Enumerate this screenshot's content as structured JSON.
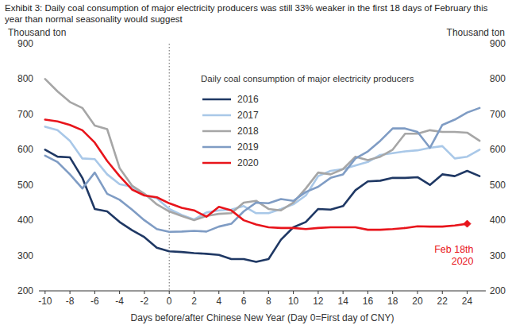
{
  "chart_data": {
    "type": "line",
    "title": "Exhibit 3: Daily coal consumption of major electricity producers was still 33% weaker in the first 18 days of February this year than normal seasonality would suggest",
    "x_label": "Days before/after Chinese New Year (Day 0=First day of CNY)",
    "y_label": "Thousand ton",
    "y2_label": "Thousand ton",
    "legend_title": "Daily coal consumption of major electricity producers",
    "legend": "upper right",
    "grid": false,
    "x": [
      -10,
      -9,
      -8,
      -7,
      -6,
      -5,
      -4,
      -3,
      -2,
      -1,
      0,
      1,
      2,
      3,
      4,
      5,
      6,
      7,
      8,
      9,
      10,
      11,
      12,
      13,
      14,
      15,
      16,
      17,
      18,
      19,
      20,
      21,
      22,
      23,
      24,
      25
    ],
    "xlim": [
      -10.5,
      25.5
    ],
    "xticks": [
      -10,
      -8,
      -6,
      -4,
      -2,
      0,
      2,
      4,
      6,
      8,
      10,
      12,
      14,
      16,
      18,
      20,
      22,
      24
    ],
    "ylim": [
      200,
      900
    ],
    "yticks": [
      200,
      300,
      400,
      500,
      600,
      700,
      800,
      900
    ],
    "y2lim": [
      200,
      900
    ],
    "y2ticks": [
      200,
      300,
      400,
      500,
      600,
      700,
      800,
      900
    ],
    "vline": 0,
    "series": [
      {
        "name": "2016",
        "color": "#1f3864",
        "values": [
          600,
          580,
          578,
          520,
          432,
          425,
          395,
          372,
          352,
          322,
          312,
          310,
          307,
          305,
          302,
          290,
          290,
          282,
          290,
          345,
          380,
          395,
          432,
          430,
          440,
          485,
          510,
          512,
          520,
          520,
          522,
          500,
          530,
          525,
          540,
          525
        ]
      },
      {
        "name": "2017",
        "color": "#a9c8e8",
        "values": [
          665,
          655,
          625,
          575,
          573,
          530,
          502,
          495,
          472,
          462,
          432,
          415,
          402,
          422,
          428,
          430,
          440,
          420,
          420,
          432,
          445,
          470,
          525,
          540,
          545,
          555,
          565,
          585,
          590,
          595,
          598,
          605,
          610,
          575,
          580,
          600
        ]
      },
      {
        "name": "2018",
        "color": "#a6a6a6",
        "values": [
          800,
          765,
          735,
          718,
          668,
          658,
          548,
          498,
          475,
          445,
          425,
          412,
          400,
          412,
          418,
          420,
          450,
          455,
          432,
          428,
          450,
          490,
          535,
          530,
          545,
          580,
          570,
          580,
          600,
          645,
          645,
          655,
          650,
          650,
          648,
          625
        ]
      },
      {
        "name": "2019",
        "color": "#7f9cc4",
        "values": [
          583,
          565,
          530,
          490,
          535,
          475,
          458,
          430,
          400,
          375,
          367,
          368,
          370,
          368,
          382,
          390,
          425,
          450,
          448,
          460,
          455,
          480,
          495,
          520,
          530,
          575,
          595,
          625,
          660,
          660,
          650,
          605,
          670,
          685,
          705,
          718
        ]
      },
      {
        "name": "2020",
        "color": "#e8141b",
        "values": [
          685,
          680,
          670,
          655,
          620,
          568,
          525,
          487,
          470,
          465,
          448,
          435,
          428,
          410,
          438,
          428,
          400,
          388,
          380,
          378,
          378,
          375,
          378,
          380,
          380,
          380,
          373,
          373,
          375,
          378,
          383,
          382,
          382,
          385,
          390,
          null
        ]
      }
    ],
    "annotation": {
      "text": [
        "Feb 18th",
        "2020"
      ],
      "marker": "diamond",
      "color": "#e8141b"
    }
  }
}
